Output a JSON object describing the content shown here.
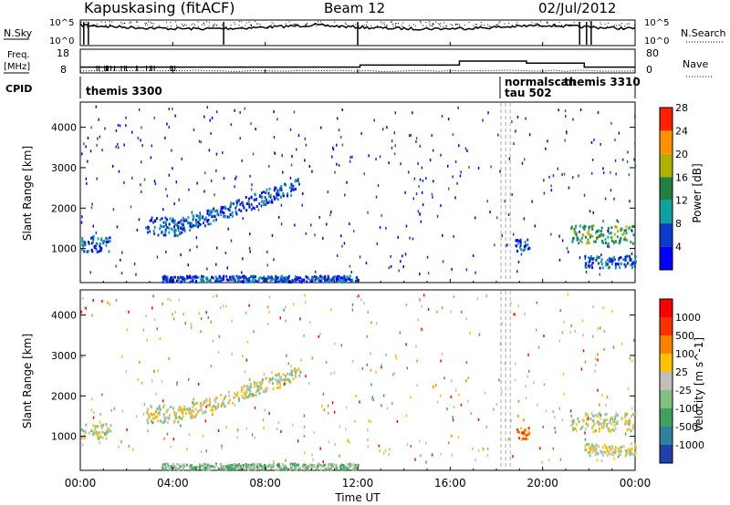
{
  "header": {
    "station": "Kapuskasing (fitACF)",
    "beam": "Beam 12",
    "date": "02/Jul/2012"
  },
  "noise_panel": {
    "left_label": "N.Sky",
    "right_label": "N.Search",
    "left_ticks": [
      "10^5",
      "10^0"
    ],
    "right_ticks": [
      "10^5",
      "10^0"
    ]
  },
  "freq_panel": {
    "left_label_line1": "Freq.",
    "left_label_line2": "[MHz]",
    "right_label": "Nave",
    "left_ticks": [
      "18",
      "8"
    ],
    "right_ticks": [
      "80",
      "0"
    ]
  },
  "cpid_panel": {
    "label": "CPID",
    "entries": [
      {
        "text": "themis 3300",
        "time_h": 0.0
      },
      {
        "text": "themis 3310",
        "time_h": 18.6
      },
      {
        "text": "normalscan",
        "time_h": 18.6
      },
      {
        "text": "tau 502",
        "time_h": 18.6
      }
    ]
  },
  "x_axis": {
    "ticks": [
      "00:00",
      "04:00",
      "08:00",
      "12:00",
      "16:00",
      "20:00",
      "00:00"
    ],
    "label": "Time UT"
  },
  "chart_data": [
    {
      "type": "heatmap",
      "name": "power",
      "ylabel": "Slant Range [km]",
      "yticks": [
        "1000",
        "2000",
        "3000",
        "4000"
      ],
      "ylim": [
        180,
        4600
      ],
      "xlim": [
        0,
        24
      ],
      "colorbar": {
        "label": "Power [dB]",
        "ticks": [
          "4",
          "8",
          "12",
          "16",
          "20",
          "24",
          "28"
        ],
        "colors": [
          "#0000ff",
          "#0a3ccc",
          "#10a0a0",
          "#208040",
          "#b0b000",
          "#ff9000",
          "#ff2000"
        ]
      },
      "regions": [
        {
          "t0": 0.0,
          "t1": 1.3,
          "r0": 950,
          "r1": 1350,
          "class": 1
        },
        {
          "t0": 2.8,
          "t1": 4.5,
          "r0": 1350,
          "r1": 1800,
          "class": 1
        },
        {
          "t0": 4.0,
          "t1": 9.5,
          "r0": 1500,
          "r1": 2600,
          "class": 1
        },
        {
          "t0": 3.5,
          "t1": 12.0,
          "r0": 200,
          "r1": 350,
          "class": 1
        },
        {
          "t0": 21.2,
          "t1": 24.0,
          "r0": 1150,
          "r1": 1600,
          "class": 3
        },
        {
          "t0": 21.8,
          "t1": 24.0,
          "r0": 550,
          "r1": 850,
          "class": 1
        },
        {
          "t0": 18.8,
          "t1": 19.4,
          "r0": 950,
          "r1": 1250,
          "class": 1
        }
      ]
    },
    {
      "type": "heatmap",
      "name": "velocity",
      "ylabel": "Slant Range [km]",
      "yticks": [
        "1000",
        "2000",
        "3000",
        "4000"
      ],
      "ylim": [
        180,
        4600
      ],
      "xlim": [
        0,
        24
      ],
      "colorbar": {
        "label": "Velocity [m s^-1]",
        "ticks": [
          "1000",
          "500",
          "100",
          "25",
          "-25",
          "-100",
          "-500",
          "-1000"
        ],
        "colors": [
          "#2040b0",
          "#3080a0",
          "#40a060",
          "#80c080",
          "#c0c0b8",
          "#ffc000",
          "#ff8000",
          "#ff3000",
          "#ff0000"
        ]
      },
      "regions": [
        {
          "t0": 0.0,
          "t1": 1.3,
          "r0": 950,
          "r1": 1350,
          "class": 4
        },
        {
          "t0": 2.8,
          "t1": 4.5,
          "r0": 1350,
          "r1": 1800,
          "class": 4
        },
        {
          "t0": 4.0,
          "t1": 9.5,
          "r0": 1500,
          "r1": 2600,
          "class": 4
        },
        {
          "t0": 3.5,
          "t1": 12.0,
          "r0": 200,
          "r1": 350,
          "class": 3
        },
        {
          "t0": 21.2,
          "t1": 24.0,
          "r0": 1150,
          "r1": 1600,
          "class": 4
        },
        {
          "t0": 21.8,
          "t1": 24.0,
          "r0": 550,
          "r1": 850,
          "class": 4
        },
        {
          "t0": 18.8,
          "t1": 19.4,
          "r0": 950,
          "r1": 1250,
          "class": 6
        }
      ]
    }
  ]
}
